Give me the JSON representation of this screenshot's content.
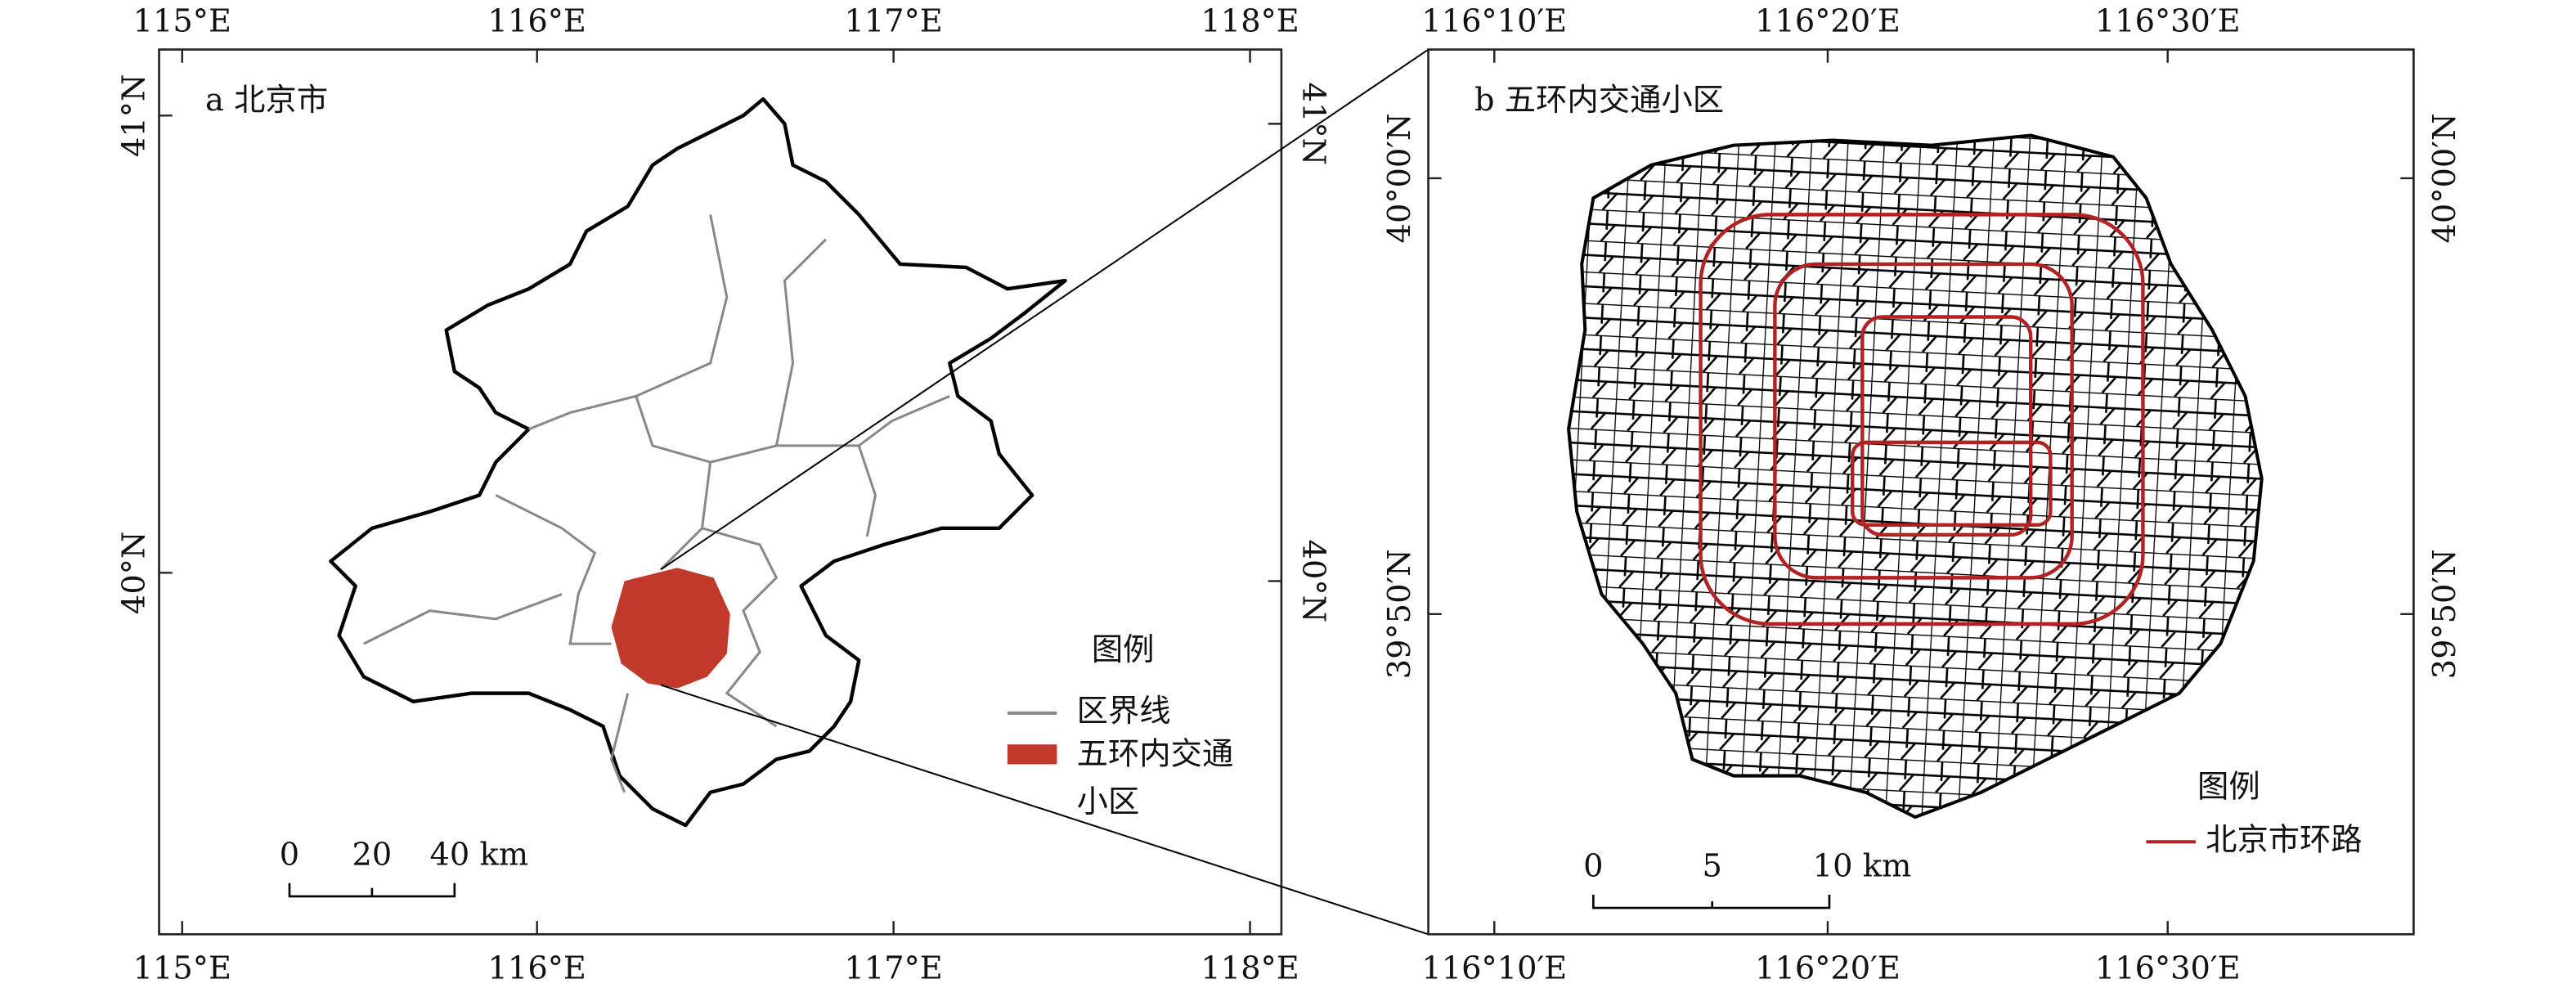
{
  "panel_a": {
    "label": "a 北京市",
    "top_ticks": [
      "115°E",
      "116°E",
      "117°E",
      "118°E"
    ],
    "bottom_ticks": [
      "115°E",
      "116°E",
      "117°E",
      "118°E"
    ],
    "left_ticks": [
      "41°N",
      "40°N"
    ],
    "right_ticks": [
      "41°N",
      "40°N"
    ],
    "legend": {
      "title": "图例",
      "boundary": "区界线",
      "zones": [
        "五环内交通",
        "小区"
      ]
    },
    "scale_bar": [
      "0",
      "20",
      "40 km"
    ]
  },
  "panel_b": {
    "label": "b 五环内交通小区",
    "top_ticks": [
      "116°10′E",
      "116°20′E",
      "116°30′E"
    ],
    "bottom_ticks": [
      "116°10′E",
      "116°20′E",
      "116°30′E"
    ],
    "left_ticks": [
      "40°00′N",
      "39°50′N"
    ],
    "right_ticks": [
      "40°00′N",
      "39°50′N"
    ],
    "legend": {
      "title": "图例",
      "ring_roads": "北京市环路"
    },
    "scale_bar": [
      "0",
      "5",
      "10 km"
    ]
  }
}
